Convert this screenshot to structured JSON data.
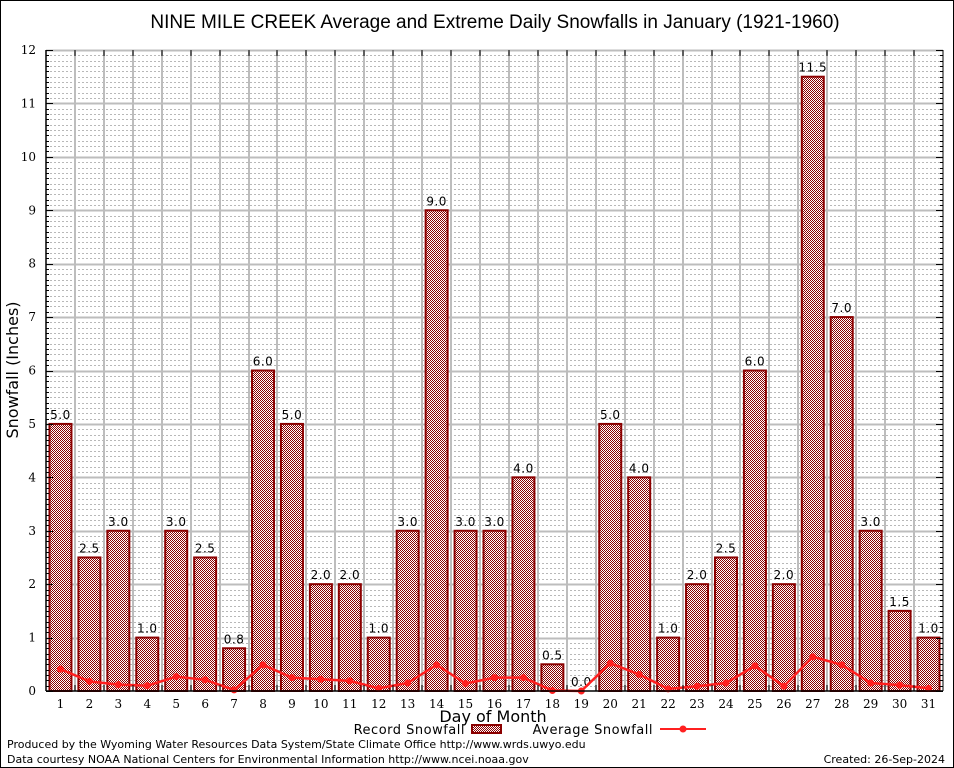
{
  "chart_data": {
    "type": "bar",
    "title": "NINE MILE CREEK Average and Extreme Daily Snowfalls in January (1921-1960)",
    "xlabel": "Day of Month",
    "ylabel": "Snowfall (Inches)",
    "ylim": [
      0,
      12
    ],
    "yticks": [
      "0",
      "1",
      "2",
      "3",
      "4",
      "5",
      "6",
      "7",
      "8",
      "9",
      "10",
      "11",
      "12"
    ],
    "grid": true,
    "legend_position": "bottom-center",
    "categories": [
      "1",
      "2",
      "3",
      "4",
      "5",
      "6",
      "7",
      "8",
      "9",
      "10",
      "11",
      "12",
      "13",
      "14",
      "15",
      "16",
      "17",
      "18",
      "19",
      "20",
      "21",
      "22",
      "23",
      "24",
      "25",
      "26",
      "27",
      "28",
      "29",
      "30",
      "31"
    ],
    "series": [
      {
        "name": "Record Snowfall",
        "type": "bar",
        "color": "#8b0000",
        "values": [
          5.0,
          2.5,
          3.0,
          1.0,
          3.0,
          2.5,
          0.8,
          6.0,
          5.0,
          2.0,
          2.0,
          1.0,
          3.0,
          9.0,
          3.0,
          3.0,
          4.0,
          0.5,
          0.0,
          5.0,
          4.0,
          1.0,
          2.0,
          2.5,
          6.0,
          2.0,
          11.5,
          7.0,
          3.0,
          1.5,
          1.0
        ],
        "labels": [
          "5.0",
          "2.5",
          "3.0",
          "1.0",
          "3.0",
          "2.5",
          "0.8",
          "6.0",
          "5.0",
          "2.0",
          "2.0",
          "1.0",
          "3.0",
          "9.0",
          "3.0",
          "3.0",
          "4.0",
          "0.5",
          "0.0",
          "5.0",
          "4.0",
          "1.0",
          "2.0",
          "2.5",
          "6.0",
          "2.0",
          "11.5",
          "7.0",
          "3.0",
          "1.5",
          "1.0"
        ]
      },
      {
        "name": "Average Snowfall",
        "type": "line",
        "color": "#ff2020",
        "values": [
          0.41,
          0.18,
          0.12,
          0.1,
          0.27,
          0.21,
          0.02,
          0.49,
          0.25,
          0.22,
          0.19,
          0.05,
          0.15,
          0.49,
          0.14,
          0.25,
          0.25,
          0.01,
          0.0,
          0.52,
          0.31,
          0.04,
          0.09,
          0.15,
          0.47,
          0.09,
          0.64,
          0.49,
          0.15,
          0.11,
          0.05
        ]
      }
    ]
  },
  "footer": {
    "produced_by": "Produced by the Wyoming Water Resources Data System/State Climate Office http://www.wrds.uwyo.edu",
    "data_courtesy": "Data courtesy NOAA National Centers for Environmental Information http://www.ncei.noaa.gov",
    "created": "Created:  26-Sep-2024"
  }
}
